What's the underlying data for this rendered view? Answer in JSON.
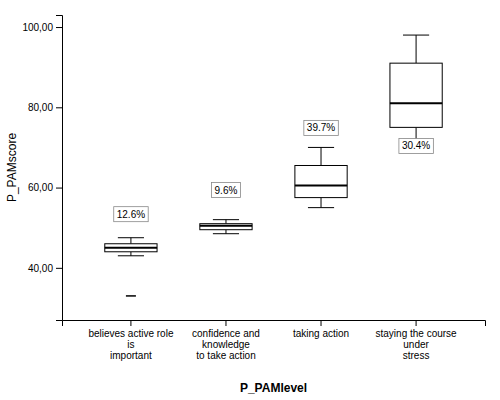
{
  "chart_data": {
    "type": "box",
    "xlabel": "P_PAMlevel",
    "ylabel": "P_PAMscore",
    "categories": [
      "believes active role is\nimportant",
      "confidence and knowledge\nto take action",
      "taking action",
      "staying the course under\nstress"
    ],
    "boxes": [
      {
        "med": 45.0,
        "q1": 44.0,
        "q3": 46.0,
        "whislo": 43.0,
        "whishi": 47.5,
        "fliers": [
          33.0
        ]
      },
      {
        "med": 50.5,
        "q1": 49.5,
        "q3": 51.0,
        "whislo": 48.5,
        "whishi": 52.0,
        "fliers": []
      },
      {
        "med": 60.5,
        "q1": 57.5,
        "q3": 65.5,
        "whislo": 55.0,
        "whishi": 70.0,
        "fliers": []
      },
      {
        "med": 81.0,
        "q1": 75.0,
        "q3": 91.0,
        "whislo": 72.0,
        "whishi": 98.0,
        "fliers": []
      }
    ],
    "annotations": [
      {
        "text": "12.6%",
        "y": 51.5
      },
      {
        "text": "9.6%",
        "y": 57.5
      },
      {
        "text": "39.7%",
        "y": 73.0
      },
      {
        "text": "30.4%",
        "y": 68.5
      }
    ],
    "ylim": [
      27,
      103
    ],
    "yticks": [
      {
        "value": 40.0,
        "label": "40,00"
      },
      {
        "value": 60.0,
        "label": "60,00"
      },
      {
        "value": 80.0,
        "label": "80,00"
      },
      {
        "value": 100.0,
        "label": "100,00"
      }
    ],
    "color": "black",
    "marker": "dash",
    "grid": false
  }
}
